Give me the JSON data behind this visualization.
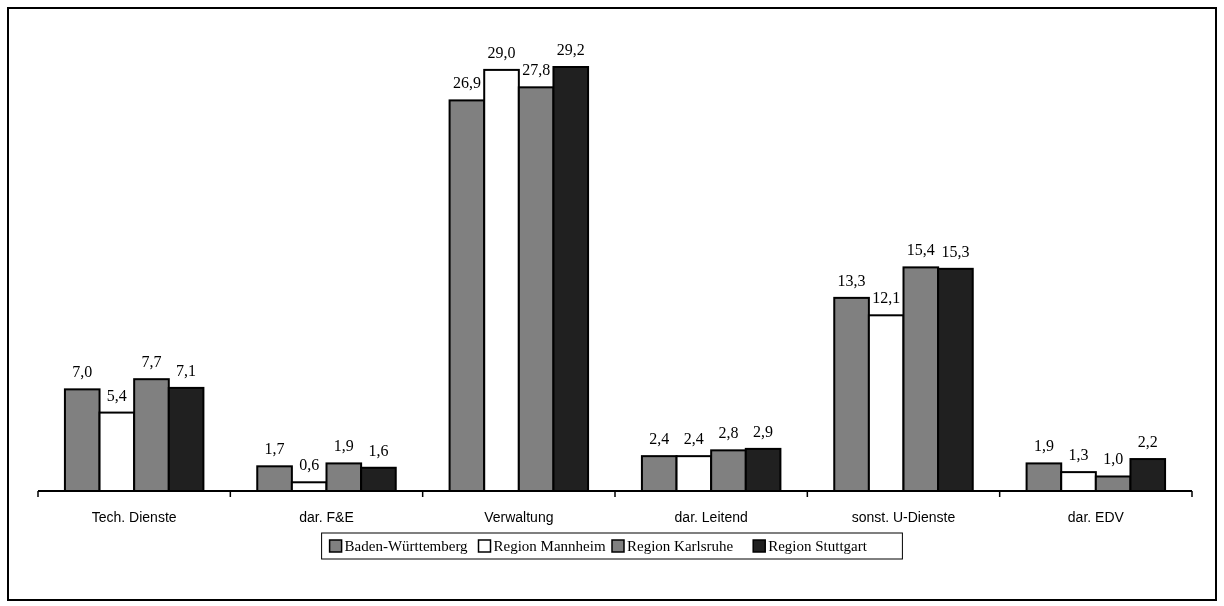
{
  "chart_data": {
    "type": "bar",
    "categories": [
      "Tech. Dienste",
      "dar. F&E",
      "Verwaltung",
      "dar. Leitend",
      "sonst. U-Dienste",
      "dar. EDV"
    ],
    "series": [
      {
        "name": "Baden-Württemberg",
        "color": "#808080",
        "values": [
          7.0,
          1.7,
          26.9,
          2.4,
          13.3,
          1.9
        ],
        "value_labels": [
          "7,0",
          "1,7",
          "26,9",
          "2,4",
          "13,3",
          "1,9"
        ]
      },
      {
        "name": "Region Mannheim",
        "color": "#ffffff",
        "values": [
          5.4,
          0.6,
          29.0,
          2.4,
          12.1,
          1.3
        ],
        "value_labels": [
          "5,4",
          "0,6",
          "29,0",
          "2,4",
          "12,1",
          "1,3"
        ]
      },
      {
        "name": "Region Karlsruhe",
        "color": "#808080",
        "values": [
          7.7,
          1.9,
          27.8,
          2.8,
          15.4,
          1.0
        ],
        "value_labels": [
          "7,7",
          "1,9",
          "27,8",
          "2,8",
          "15,4",
          "1,0"
        ]
      },
      {
        "name": "Region Stuttgart",
        "color": "#202020",
        "values": [
          7.1,
          1.6,
          29.2,
          2.9,
          15.3,
          2.2
        ],
        "value_labels": [
          "7,1",
          "1,6",
          "29,2",
          "2,9",
          "15,3",
          "2,2"
        ]
      }
    ],
    "legend": "bottom"
  }
}
